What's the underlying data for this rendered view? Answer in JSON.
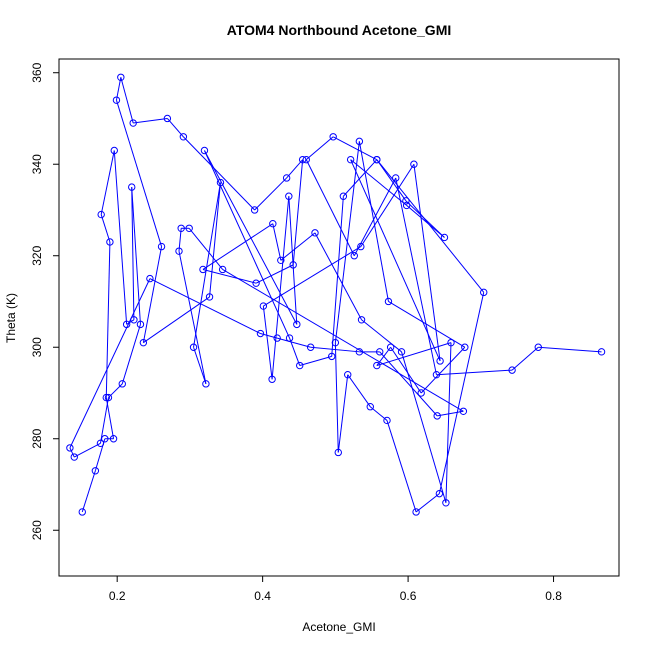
{
  "chart_data": {
    "type": "scatter",
    "title": "ATOM4 Northbound Acetone_GMI",
    "xlabel": "Acetone_GMI",
    "ylabel": "Theta (K)",
    "xlim": [
      0.12,
      0.89
    ],
    "ylim": [
      250,
      363
    ],
    "x_ticks": [
      0.2,
      0.4,
      0.6,
      0.8
    ],
    "y_ticks": [
      260,
      280,
      300,
      320,
      340,
      360
    ],
    "x_tick_labels": [
      "0.2",
      "0.4",
      "0.6",
      "0.8"
    ],
    "y_tick_labels": [
      "260",
      "280",
      "300",
      "320",
      "340",
      "360"
    ],
    "connect_points": true,
    "series_color": "#0000ff",
    "marker": "open-circle",
    "x": [
      0.152,
      0.17,
      0.183,
      0.195,
      0.185,
      0.19,
      0.178,
      0.196,
      0.213,
      0.223,
      0.22,
      0.232,
      0.207,
      0.188,
      0.177,
      0.141,
      0.135,
      0.245,
      0.397,
      0.42,
      0.466,
      0.533,
      0.561,
      0.64,
      0.676,
      0.345,
      0.299,
      0.288,
      0.285,
      0.322,
      0.305,
      0.342,
      0.327,
      0.236,
      0.261,
      0.199,
      0.205,
      0.222,
      0.269,
      0.291,
      0.389,
      0.433,
      0.455,
      0.442,
      0.391,
      0.318,
      0.414,
      0.425,
      0.472,
      0.536,
      0.591,
      0.652,
      0.659,
      0.557,
      0.576,
      0.618,
      0.678,
      0.573,
      0.533,
      0.5,
      0.504,
      0.517,
      0.548,
      0.571,
      0.611,
      0.643,
      0.704,
      0.557,
      0.511,
      0.495,
      0.451,
      0.437,
      0.32,
      0.447,
      0.436,
      0.413,
      0.401,
      0.535,
      0.608,
      0.644,
      0.521,
      0.598,
      0.65,
      0.597,
      0.557,
      0.497,
      0.46,
      0.526,
      0.583,
      0.639,
      0.743,
      0.779,
      0.866
    ],
    "y": [
      264,
      273,
      280,
      280,
      289,
      323,
      329,
      343,
      305,
      306,
      335,
      305,
      292,
      289,
      279,
      276,
      278,
      315,
      303,
      302,
      300,
      299,
      299,
      285,
      286,
      317,
      326,
      326,
      321,
      292,
      300,
      336,
      311,
      301,
      322,
      354,
      359,
      349,
      350,
      346,
      330,
      337,
      341,
      318,
      314,
      317,
      327,
      319,
      325,
      306,
      299,
      266,
      301,
      296,
      300,
      290,
      300,
      310,
      345,
      301,
      277,
      294,
      287,
      284,
      264,
      268,
      312,
      341,
      333,
      298,
      296,
      302,
      343,
      305,
      333,
      293,
      309,
      322,
      340,
      297,
      341,
      331,
      324,
      332,
      341,
      346,
      341,
      320,
      337,
      294,
      295,
      300,
      299
    ]
  }
}
